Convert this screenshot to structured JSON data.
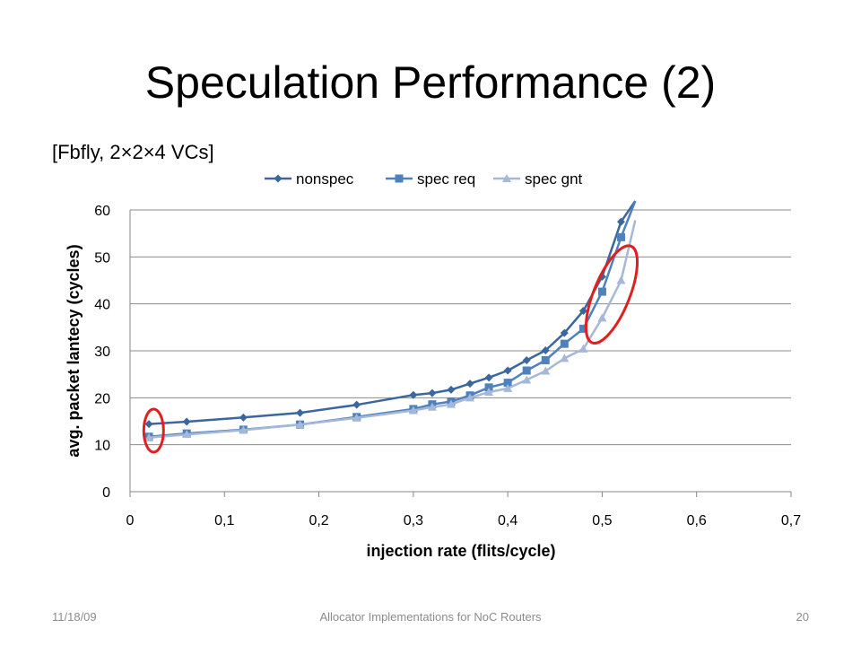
{
  "slide": {
    "title": "Speculation Performance (2)",
    "subtitle": "[Fbfly, 2×2×4 VCs]",
    "footer_date": "11/18/09",
    "footer_center": "Allocator Implementations for NoC Routers",
    "page_number": "20"
  },
  "chart_data": {
    "type": "line",
    "xlabel": "injection rate (flits/cycle)",
    "ylabel": "avg. packet lantecy (cycles)",
    "xlim": [
      0,
      0.7
    ],
    "ylim": [
      0,
      60
    ],
    "xticks": [
      "0",
      "0,1",
      "0,2",
      "0,3",
      "0,4",
      "0,5",
      "0,6",
      "0,7"
    ],
    "yticks": [
      "0",
      "10",
      "20",
      "30",
      "40",
      "50",
      "60"
    ],
    "grid": "horizontal",
    "legend_position": "top",
    "series": [
      {
        "name": "nonspec",
        "color": "#3b679e",
        "marker": "diamond",
        "x": [
          0.02,
          0.06,
          0.12,
          0.18,
          0.24,
          0.3,
          0.32,
          0.34,
          0.36,
          0.38,
          0.4,
          0.42,
          0.44,
          0.46,
          0.48,
          0.5,
          0.52
        ],
        "y": [
          14.4,
          14.9,
          15.8,
          16.8,
          18.5,
          20.6,
          21.0,
          21.7,
          23.0,
          24.3,
          25.8,
          28.0,
          30.1,
          33.8,
          38.5,
          45.8,
          57.5
        ]
      },
      {
        "name": "spec req",
        "color": "#4f81bd",
        "marker": "square",
        "x": [
          0.02,
          0.06,
          0.12,
          0.18,
          0.24,
          0.3,
          0.32,
          0.34,
          0.36,
          0.38,
          0.4,
          0.42,
          0.44,
          0.46,
          0.48,
          0.5,
          0.52
        ],
        "y": [
          11.7,
          12.4,
          13.2,
          14.3,
          15.9,
          17.6,
          18.6,
          19.2,
          20.5,
          22.2,
          23.2,
          25.8,
          28.0,
          31.5,
          34.7,
          42.6,
          54.2
        ]
      },
      {
        "name": "spec gnt",
        "color": "#a5b8d9",
        "marker": "triangle",
        "x": [
          0.02,
          0.06,
          0.12,
          0.18,
          0.24,
          0.3,
          0.32,
          0.34,
          0.36,
          0.38,
          0.4,
          0.42,
          0.44,
          0.46,
          0.48,
          0.5,
          0.52
        ],
        "y": [
          11.5,
          12.2,
          13.1,
          14.3,
          15.7,
          17.3,
          18.0,
          18.6,
          20.0,
          21.2,
          22.0,
          23.8,
          25.7,
          28.4,
          30.4,
          37.0,
          45.0
        ]
      }
    ],
    "annotations": [
      {
        "type": "ellipse",
        "color": "#e02020",
        "x": 0.025,
        "y": 13.0
      },
      {
        "type": "ellipse",
        "color": "#e02020",
        "x": 0.51,
        "y": 42.0
      }
    ]
  }
}
